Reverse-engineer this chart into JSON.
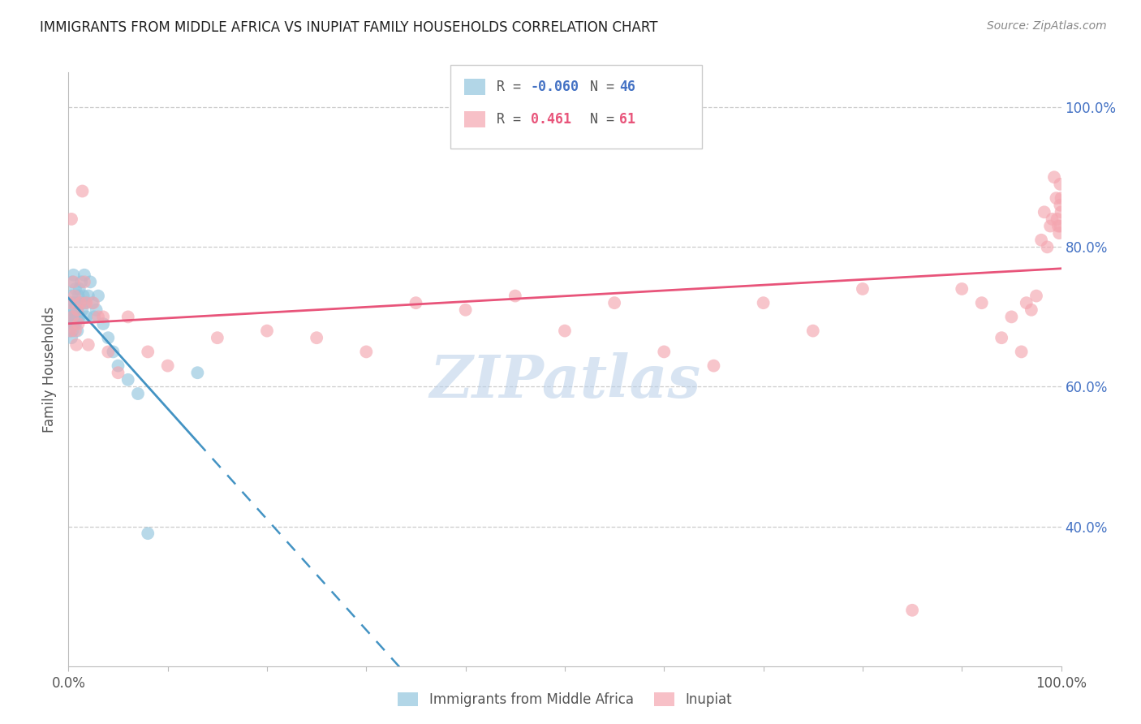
{
  "title": "IMMIGRANTS FROM MIDDLE AFRICA VS INUPIAT FAMILY HOUSEHOLDS CORRELATION CHART",
  "source": "Source: ZipAtlas.com",
  "ylabel": "Family Households",
  "right_yticks": [
    "100.0%",
    "80.0%",
    "60.0%",
    "40.0%"
  ],
  "right_ytick_values": [
    1.0,
    0.8,
    0.6,
    0.4
  ],
  "legend_blue_r": "-0.060",
  "legend_blue_n": "46",
  "legend_pink_r": "0.461",
  "legend_pink_n": "61",
  "blue_color": "#92c5de",
  "pink_color": "#f4a6b0",
  "blue_line_color": "#4393c3",
  "pink_line_color": "#e8547a",
  "watermark": "ZIPatlas",
  "blue_scatter_x": [
    0.001,
    0.001,
    0.002,
    0.002,
    0.002,
    0.003,
    0.003,
    0.003,
    0.004,
    0.004,
    0.005,
    0.005,
    0.005,
    0.006,
    0.006,
    0.007,
    0.007,
    0.008,
    0.008,
    0.009,
    0.009,
    0.01,
    0.01,
    0.011,
    0.011,
    0.012,
    0.013,
    0.014,
    0.015,
    0.016,
    0.017,
    0.018,
    0.02,
    0.022,
    0.024,
    0.026,
    0.028,
    0.03,
    0.035,
    0.04,
    0.045,
    0.05,
    0.06,
    0.07,
    0.08,
    0.13
  ],
  "blue_scatter_y": [
    0.68,
    0.7,
    0.69,
    0.71,
    0.72,
    0.67,
    0.7,
    0.73,
    0.68,
    0.75,
    0.69,
    0.71,
    0.76,
    0.7,
    0.72,
    0.69,
    0.74,
    0.7,
    0.72,
    0.68,
    0.71,
    0.7,
    0.73,
    0.7,
    0.74,
    0.72,
    0.75,
    0.71,
    0.73,
    0.76,
    0.72,
    0.7,
    0.73,
    0.75,
    0.72,
    0.7,
    0.71,
    0.73,
    0.69,
    0.67,
    0.65,
    0.63,
    0.61,
    0.59,
    0.39,
    0.62
  ],
  "pink_scatter_x": [
    0.001,
    0.002,
    0.003,
    0.004,
    0.005,
    0.006,
    0.007,
    0.008,
    0.009,
    0.01,
    0.012,
    0.014,
    0.016,
    0.018,
    0.02,
    0.025,
    0.03,
    0.035,
    0.04,
    0.05,
    0.06,
    0.08,
    0.1,
    0.15,
    0.2,
    0.25,
    0.3,
    0.35,
    0.4,
    0.45,
    0.5,
    0.55,
    0.6,
    0.65,
    0.7,
    0.75,
    0.8,
    0.85,
    0.9,
    0.92,
    0.94,
    0.95,
    0.96,
    0.965,
    0.97,
    0.975,
    0.98,
    0.983,
    0.986,
    0.989,
    0.991,
    0.993,
    0.995,
    0.996,
    0.997,
    0.998,
    0.999,
    0.999,
    0.999,
    1.0,
    1.0
  ],
  "pink_scatter_y": [
    0.72,
    0.68,
    0.84,
    0.7,
    0.75,
    0.73,
    0.68,
    0.66,
    0.71,
    0.69,
    0.72,
    0.88,
    0.75,
    0.72,
    0.66,
    0.72,
    0.7,
    0.7,
    0.65,
    0.62,
    0.7,
    0.65,
    0.63,
    0.67,
    0.68,
    0.67,
    0.65,
    0.72,
    0.71,
    0.73,
    0.68,
    0.72,
    0.65,
    0.63,
    0.72,
    0.68,
    0.74,
    0.28,
    0.74,
    0.72,
    0.67,
    0.7,
    0.65,
    0.72,
    0.71,
    0.73,
    0.81,
    0.85,
    0.8,
    0.83,
    0.84,
    0.9,
    0.87,
    0.84,
    0.83,
    0.82,
    0.89,
    0.86,
    0.83,
    0.87,
    0.85
  ]
}
